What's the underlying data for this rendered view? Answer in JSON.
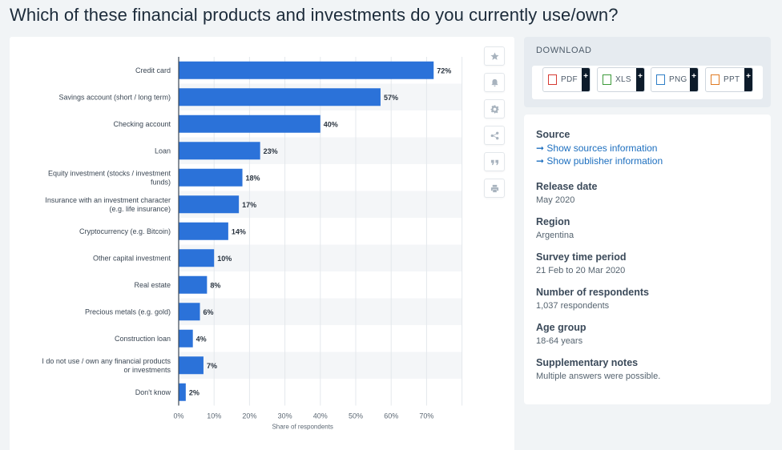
{
  "page_title": "Which of these financial products and investments do you currently use/own?",
  "colors": {
    "bar": "#2b72d9",
    "stripe": "#f4f6f8",
    "accent_link": "#1d6fbf"
  },
  "toolbar_icons": [
    "star-icon",
    "bell-icon",
    "gear-icon",
    "share-icon",
    "quote-icon",
    "print-icon"
  ],
  "download": {
    "title": "DOWNLOAD",
    "buttons": [
      {
        "label": "PDF",
        "plus": "+",
        "icon": "pdf-file-icon",
        "color": "#d63a32"
      },
      {
        "label": "XLS",
        "plus": "+",
        "icon": "xls-file-icon",
        "color": "#3c9a3a"
      },
      {
        "label": "PNG",
        "plus": "+",
        "icon": "png-file-icon",
        "color": "#2f7fc7"
      },
      {
        "label": "PPT",
        "plus": "+",
        "icon": "ppt-file-icon",
        "color": "#e07a22"
      }
    ]
  },
  "info": {
    "source_label": "Source",
    "source_links": [
      "➞ Show sources information",
      "➞ Show publisher information"
    ],
    "fields": [
      {
        "label": "Release date",
        "value": "May 2020"
      },
      {
        "label": "Region",
        "value": "Argentina"
      },
      {
        "label": "Survey time period",
        "value": "21 Feb to 20 Mar 2020"
      },
      {
        "label": "Number of respondents",
        "value": "1,037 respondents"
      },
      {
        "label": "Age group",
        "value": "18-64 years"
      },
      {
        "label": "Supplementary notes",
        "value": "Multiple answers were possible."
      }
    ]
  },
  "chart_data": {
    "type": "bar",
    "orientation": "horizontal",
    "categories": [
      [
        "Credit card"
      ],
      [
        "Savings account (short / long term)"
      ],
      [
        "Checking account"
      ],
      [
        "Loan"
      ],
      [
        "Equity investment (stocks / investment",
        "funds)"
      ],
      [
        "Insurance with an investment character",
        "(e.g. life insurance)"
      ],
      [
        "Cryptocurrency (e.g. Bitcoin)"
      ],
      [
        "Other capital investment"
      ],
      [
        "Real estate"
      ],
      [
        "Precious metals (e.g. gold)"
      ],
      [
        "Construction loan"
      ],
      [
        "I do not use / own any financial products",
        "or investments"
      ],
      [
        "Don't know"
      ]
    ],
    "values": [
      72,
      57,
      40,
      23,
      18,
      17,
      14,
      10,
      8,
      6,
      4,
      7,
      2
    ],
    "data_labels": [
      "72%",
      "57%",
      "40%",
      "23%",
      "18%",
      "17%",
      "14%",
      "10%",
      "8%",
      "6%",
      "4%",
      "7%",
      "2%"
    ],
    "x_ticks": [
      "0%",
      "10%",
      "20%",
      "30%",
      "40%",
      "50%",
      "60%",
      "70%"
    ],
    "xlabel": "Share of respondents",
    "xlim": [
      0,
      80
    ],
    "grid": true
  }
}
